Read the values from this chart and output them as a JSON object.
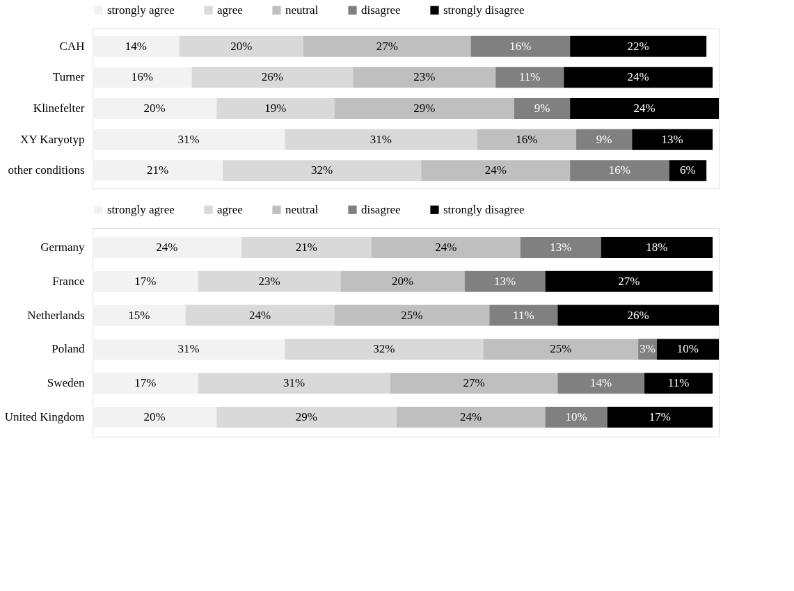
{
  "chart_data": [
    {
      "type": "bar",
      "orientation": "horizontal",
      "stacked": true,
      "legend": "top",
      "tick_labels": "y",
      "categories": [
        "CAH",
        "Turner",
        "Klinefelter",
        "XY Karyotyp",
        "other conditions"
      ],
      "series": [
        {
          "name": "strongly agree",
          "color": "#f2f2f2",
          "values": [
            14,
            16,
            20,
            31,
            21
          ],
          "value_labels": [
            "14%",
            "16%",
            "20%",
            "31%",
            "21%"
          ]
        },
        {
          "name": "agree",
          "color": "#d9d9d9",
          "values": [
            20,
            26,
            19,
            31,
            32
          ],
          "value_labels": [
            "20%",
            "26%",
            "19%",
            "31%",
            "32%"
          ]
        },
        {
          "name": "neutral",
          "color": "#bfbfbf",
          "values": [
            27,
            23,
            29,
            16,
            24
          ],
          "value_labels": [
            "27%",
            "23%",
            "29%",
            "16%",
            "24%"
          ]
        },
        {
          "name": "disagree",
          "color": "#808080",
          "values": [
            16,
            11,
            9,
            9,
            16
          ],
          "value_labels": [
            "16%",
            "11%",
            "9%",
            "9%",
            "16%"
          ]
        },
        {
          "name": "strongly disagree",
          "color": "#000000",
          "values": [
            22,
            24,
            24,
            13,
            6
          ],
          "value_labels": [
            "22%",
            "24%",
            "24%",
            "13%",
            "6%"
          ]
        }
      ]
    },
    {
      "type": "bar",
      "orientation": "horizontal",
      "stacked": true,
      "legend": "top",
      "tick_labels": "y",
      "categories": [
        "Germany",
        "France",
        "Netherlands",
        "Poland",
        "Sweden",
        "United Kingdom"
      ],
      "series": [
        {
          "name": "strongly agree",
          "color": "#f2f2f2",
          "values": [
            24,
            17,
            15,
            31,
            17,
            20
          ],
          "value_labels": [
            "24%",
            "17%",
            "15%",
            "31%",
            "17%",
            "20%"
          ]
        },
        {
          "name": "agree",
          "color": "#d9d9d9",
          "values": [
            21,
            23,
            24,
            32,
            31,
            29
          ],
          "value_labels": [
            "21%",
            "23%",
            "24%",
            "32%",
            "31%",
            "29%"
          ]
        },
        {
          "name": "neutral",
          "color": "#bfbfbf",
          "values": [
            24,
            20,
            25,
            25,
            27,
            24
          ],
          "value_labels": [
            "24%",
            "20%",
            "25%",
            "25%",
            "27%",
            "24%"
          ]
        },
        {
          "name": "disagree",
          "color": "#808080",
          "values": [
            13,
            13,
            11,
            3,
            14,
            10
          ],
          "value_labels": [
            "13%",
            "13%",
            "11%",
            "3%",
            "14%",
            "10%"
          ]
        },
        {
          "name": "strongly disagree",
          "color": "#000000",
          "values": [
            18,
            27,
            26,
            10,
            11,
            17
          ],
          "value_labels": [
            "18%",
            "27%",
            "26%",
            "10%",
            "11%",
            "17%"
          ]
        }
      ]
    }
  ]
}
